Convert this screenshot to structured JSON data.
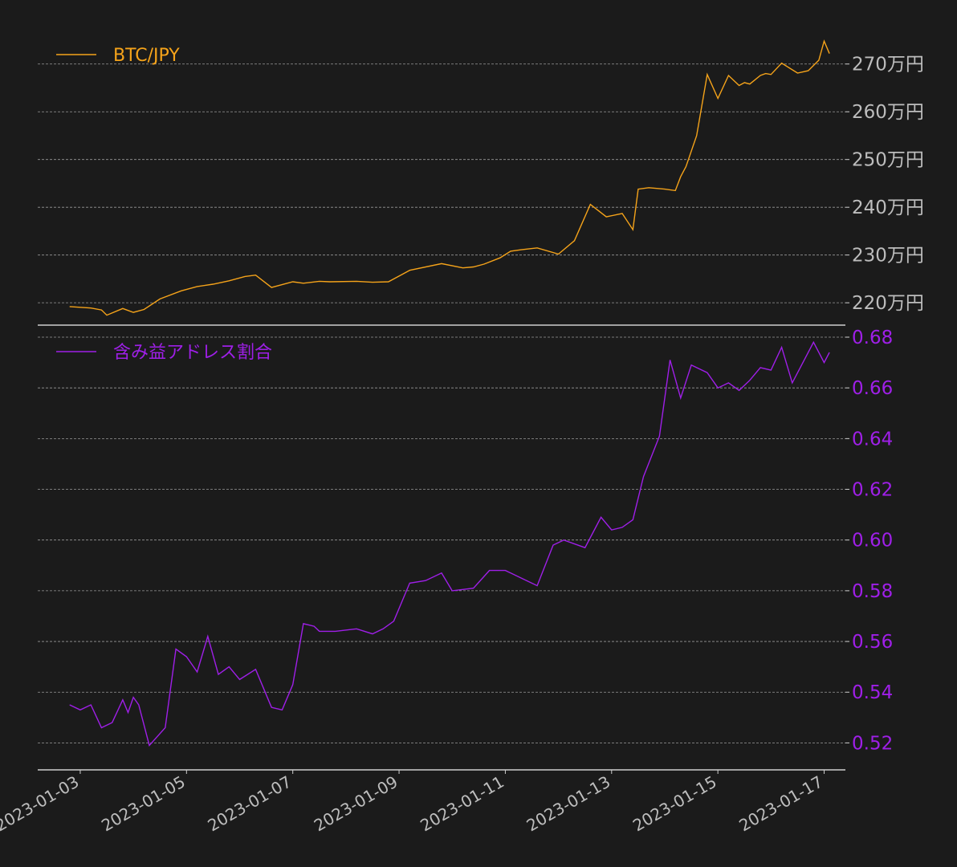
{
  "colors": {
    "background": "#1b1b1b",
    "grid": "#9a9a9a",
    "axis": "#d0d0d0",
    "btc": "#f5a31a",
    "profit": "#9f1fe8",
    "tick_text": "#bdbdbd"
  },
  "chart_data": [
    {
      "type": "line",
      "legend_label": "BTC/JPY",
      "legend_placement": "top-left",
      "grid": true,
      "y_axis_side": "right",
      "ylim": [
        217,
        275
      ],
      "y_ticks": [
        220,
        230,
        240,
        250,
        260,
        270
      ],
      "y_tick_labels": [
        "220万円",
        "230万円",
        "240万円",
        "250万円",
        "260万円",
        "270万円"
      ],
      "x_unit": "days since 2023-01-03",
      "xlim": [
        -0.8,
        14.4
      ],
      "x": [
        -0.2,
        0.2,
        0.4,
        0.5,
        0.8,
        1.0,
        1.2,
        1.5,
        1.9,
        2.2,
        2.5,
        2.8,
        3.1,
        3.3,
        3.6,
        4.0,
        4.2,
        4.5,
        4.7,
        5.2,
        5.5,
        5.8,
        6.2,
        6.8,
        7.2,
        7.4,
        7.6,
        7.9,
        8.1,
        8.3,
        8.6,
        9.0,
        9.3,
        9.6,
        9.9,
        10.2,
        10.4,
        10.5,
        10.7,
        11.0,
        11.2,
        11.3,
        11.4,
        11.6,
        11.8,
        12.0,
        12.2,
        12.4,
        12.5,
        12.6,
        12.8,
        12.9,
        13.0,
        13.2,
        13.5,
        13.7,
        13.9,
        14.0,
        14.1
      ],
      "values": [
        219.2,
        218.9,
        218.5,
        217.4,
        218.8,
        218.0,
        218.6,
        220.8,
        222.5,
        223.4,
        223.9,
        224.6,
        225.5,
        225.8,
        223.2,
        224.4,
        224.1,
        224.5,
        224.4,
        224.5,
        224.3,
        224.4,
        226.8,
        228.2,
        227.3,
        227.5,
        228.1,
        229.4,
        230.8,
        231.1,
        231.5,
        230.2,
        233.0,
        240.6,
        238.0,
        238.7,
        235.3,
        243.8,
        244.1,
        243.8,
        243.5,
        246.4,
        248.5,
        255.0,
        267.8,
        262.8,
        267.6,
        265.5,
        266.1,
        265.8,
        267.6,
        268.0,
        267.8,
        270.2,
        268.1,
        268.6,
        270.8,
        274.8,
        272.2
      ]
    },
    {
      "type": "line",
      "legend_label": "含み益アドレス割合",
      "legend_placement": "top-left",
      "grid": true,
      "y_axis_side": "right",
      "ylim": [
        0.51,
        0.68
      ],
      "y_ticks": [
        0.52,
        0.54,
        0.56,
        0.58,
        0.6,
        0.62,
        0.64,
        0.66,
        0.68
      ],
      "y_tick_labels": [
        "0.52",
        "0.54",
        "0.56",
        "0.58",
        "0.60",
        "0.62",
        "0.64",
        "0.66",
        "0.68"
      ],
      "x_unit": "days since 2023-01-03",
      "xlim": [
        -0.8,
        14.4
      ],
      "x": [
        -0.2,
        0.0,
        0.2,
        0.4,
        0.6,
        0.8,
        0.9,
        1.0,
        1.1,
        1.3,
        1.6,
        1.8,
        2.0,
        2.2,
        2.4,
        2.6,
        2.8,
        3.0,
        3.3,
        3.6,
        3.8,
        4.0,
        4.2,
        4.4,
        4.5,
        4.8,
        5.2,
        5.5,
        5.7,
        5.9,
        6.2,
        6.5,
        6.8,
        7.0,
        7.4,
        7.7,
        8.0,
        8.3,
        8.6,
        8.9,
        9.1,
        9.5,
        9.8,
        10.0,
        10.2,
        10.4,
        10.6,
        10.9,
        11.1,
        11.3,
        11.5,
        11.8,
        12.0,
        12.2,
        12.4,
        12.6,
        12.8,
        13.0,
        13.2,
        13.4,
        13.6,
        13.8,
        14.0,
        14.1
      ],
      "values": [
        0.535,
        0.533,
        0.535,
        0.526,
        0.528,
        0.537,
        0.532,
        0.538,
        0.535,
        0.519,
        0.526,
        0.557,
        0.554,
        0.548,
        0.562,
        0.547,
        0.55,
        0.545,
        0.549,
        0.534,
        0.533,
        0.543,
        0.567,
        0.566,
        0.564,
        0.564,
        0.565,
        0.563,
        0.565,
        0.568,
        0.583,
        0.584,
        0.587,
        0.58,
        0.581,
        0.588,
        0.588,
        0.585,
        0.582,
        0.598,
        0.6,
        0.597,
        0.609,
        0.604,
        0.605,
        0.608,
        0.625,
        0.641,
        0.671,
        0.656,
        0.669,
        0.666,
        0.66,
        0.662,
        0.659,
        0.663,
        0.668,
        0.667,
        0.676,
        0.662,
        0.67,
        0.678,
        0.67,
        0.674
      ]
    }
  ],
  "x_axis": {
    "tick_days": [
      0,
      2,
      4,
      6,
      8,
      10,
      12,
      14
    ],
    "tick_labels": [
      "2023-01-03",
      "2023-01-05",
      "2023-01-07",
      "2023-01-09",
      "2023-01-11",
      "2023-01-13",
      "2023-01-15",
      "2023-01-17"
    ]
  }
}
